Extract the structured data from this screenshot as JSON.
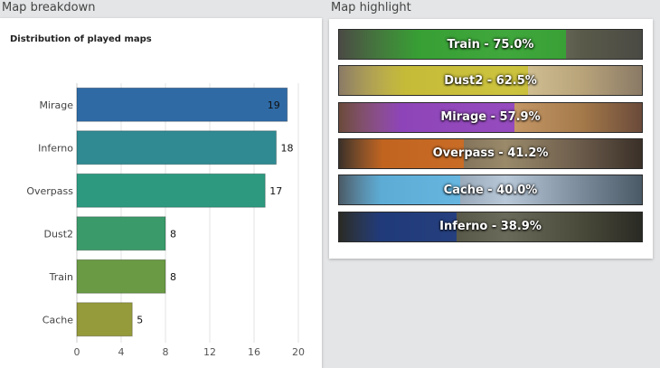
{
  "sections": {
    "left_title": "Map breakdown",
    "right_title": "Map highlight"
  },
  "chart_data": {
    "type": "bar",
    "orientation": "horizontal",
    "title": "Distribution of played maps",
    "categories": [
      "Mirage",
      "Inferno",
      "Overpass",
      "Dust2",
      "Train",
      "Cache"
    ],
    "values": [
      19,
      18,
      17,
      8,
      8,
      5
    ],
    "colors": [
      "#2f6aa5",
      "#2f8a92",
      "#2d9a80",
      "#3a9a6a",
      "#6a9a44",
      "#959a3a"
    ],
    "xlim": [
      0,
      20
    ],
    "xticks": [
      0,
      4,
      8,
      12,
      16,
      20
    ],
    "xlabel": "",
    "ylabel": "",
    "grid": true,
    "legend": "none"
  },
  "highlights": [
    {
      "map": "Train",
      "label": "Train - 75.0%",
      "value": 75.0,
      "color": "#2fae2f",
      "bg": [
        "#5a5a4a",
        "#8a8a7a",
        "#4a4a44"
      ]
    },
    {
      "map": "Dust2",
      "label": "Dust2 - 62.5%",
      "value": 62.5,
      "color": "#c9c12a",
      "bg": [
        "#b9a47a",
        "#d8c89a",
        "#8a7a66"
      ]
    },
    {
      "map": "Mirage",
      "label": "Mirage - 57.9%",
      "value": 57.9,
      "color": "#8a3ad0",
      "bg": [
        "#a57a4a",
        "#c89a6a",
        "#6a4a3a"
      ]
    },
    {
      "map": "Overpass",
      "label": "Overpass - 41.2%",
      "value": 41.2,
      "color": "#d86a1a",
      "bg": [
        "#6a5a4a",
        "#9a8a6a",
        "#3a3028"
      ]
    },
    {
      "map": "Cache",
      "label": "Cache - 40.0%",
      "value": 40.0,
      "color": "#5ab8e8",
      "bg": [
        "#7a8a9a",
        "#b8c8d8",
        "#4a5a66"
      ]
    },
    {
      "map": "Inferno",
      "label": "Inferno - 38.9%",
      "value": 38.9,
      "color": "#1a3a8a",
      "bg": [
        "#4a4a3a",
        "#6a6a5a",
        "#2a2a24"
      ]
    }
  ]
}
